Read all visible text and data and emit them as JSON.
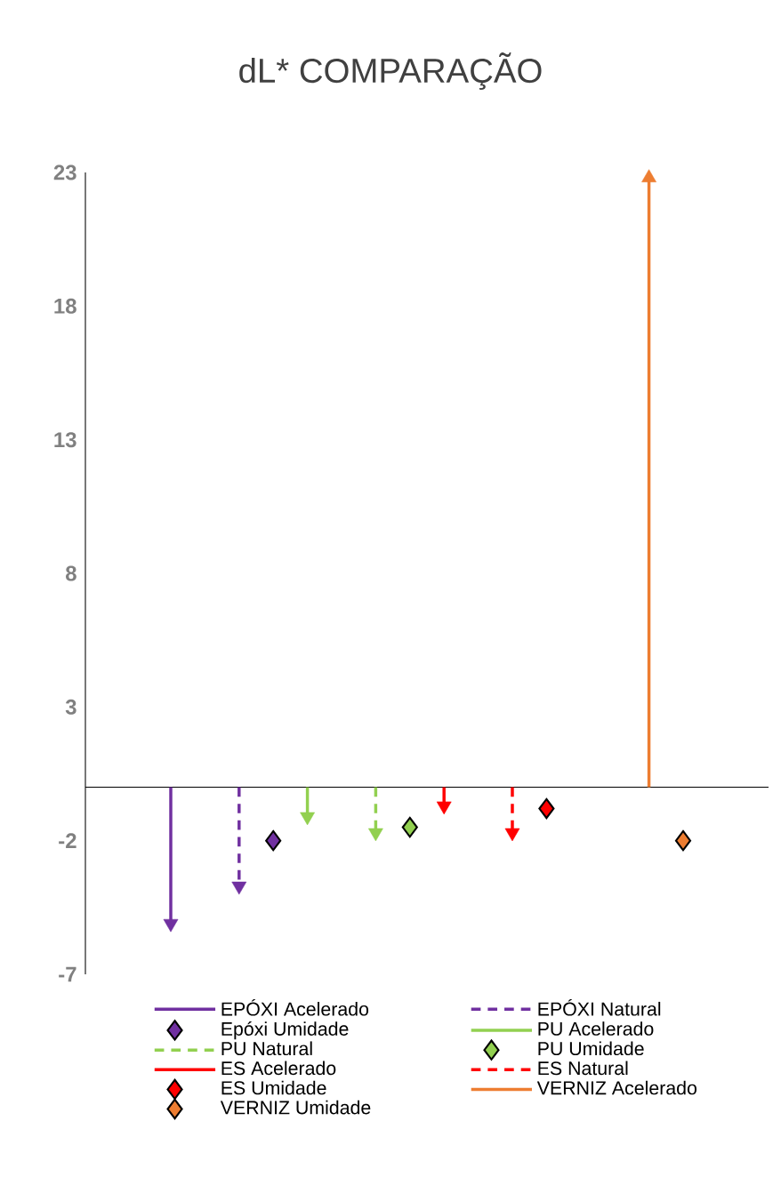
{
  "chart_data": {
    "type": "lollipop",
    "title": "dL* COMPARAÇÃO",
    "categories": [
      null,
      null,
      null,
      null,
      null,
      null,
      null,
      null,
      null,
      null,
      null,
      null,
      null,
      null,
      null,
      null,
      null,
      null,
      null,
      null
    ],
    "ylim": [
      -7,
      23
    ],
    "yticks": [
      -7,
      -2,
      3,
      8,
      13,
      18,
      23
    ],
    "tick_labels": "y",
    "legend": "bottom",
    "series": [
      {
        "name": "EPÓXI Acelerado",
        "marker": "triangle",
        "line_style": "solid",
        "color": "#7030a0",
        "values": [
          null,
          null,
          -5.1,
          null,
          null,
          null,
          null,
          null,
          null,
          null,
          null,
          null,
          null,
          null,
          null,
          null,
          null,
          null,
          null,
          null
        ]
      },
      {
        "name": "EPÓXI Natural",
        "marker": "triangle",
        "line_style": "dashed",
        "color": "#7030a0",
        "values": [
          null,
          null,
          null,
          null,
          -3.7,
          null,
          null,
          null,
          null,
          null,
          null,
          null,
          null,
          null,
          null,
          null,
          null,
          null,
          null,
          null
        ]
      },
      {
        "name": "Epóxi Umidade",
        "type": "scatter",
        "marker": "diamond",
        "color": "#7030a0",
        "values": [
          null,
          null,
          null,
          null,
          null,
          -2.0,
          null,
          null,
          null,
          null,
          null,
          null,
          null,
          null,
          null,
          null,
          null,
          null,
          null,
          null
        ]
      },
      {
        "name": "PU Acelerado",
        "marker": "triangle",
        "line_style": "solid",
        "color": "#92d050",
        "values": [
          null,
          null,
          null,
          null,
          null,
          null,
          -1.1,
          null,
          null,
          null,
          null,
          null,
          null,
          null,
          null,
          null,
          null,
          null,
          null,
          null
        ]
      },
      {
        "name": "PU Natural",
        "marker": "triangle",
        "line_style": "dashed",
        "color": "#92d050",
        "values": [
          null,
          null,
          null,
          null,
          null,
          null,
          null,
          null,
          -1.7,
          null,
          null,
          null,
          null,
          null,
          null,
          null,
          null,
          null,
          null,
          null
        ]
      },
      {
        "name": "PU Umidade",
        "type": "scatter",
        "marker": "diamond",
        "color": "#92d050",
        "values": [
          null,
          null,
          null,
          null,
          null,
          null,
          null,
          null,
          null,
          -1.5,
          null,
          null,
          null,
          null,
          null,
          null,
          null,
          null,
          null,
          null
        ]
      },
      {
        "name": "ES Acelerado",
        "marker": "triangle",
        "line_style": "solid",
        "color": "#ff0000",
        "values": [
          null,
          null,
          null,
          null,
          null,
          null,
          null,
          null,
          null,
          null,
          -0.7,
          null,
          null,
          null,
          null,
          null,
          null,
          null,
          null,
          null
        ]
      },
      {
        "name": "ES Natural",
        "marker": "triangle",
        "line_style": "dashed",
        "color": "#ff0000",
        "values": [
          null,
          null,
          null,
          null,
          null,
          null,
          null,
          null,
          null,
          null,
          null,
          null,
          -1.7,
          null,
          null,
          null,
          null,
          null,
          null,
          null
        ]
      },
      {
        "name": "ES Umidade",
        "type": "scatter",
        "marker": "diamond",
        "color": "#ff0000",
        "values": [
          null,
          null,
          null,
          null,
          null,
          null,
          null,
          null,
          null,
          null,
          null,
          null,
          null,
          -0.8,
          null,
          null,
          null,
          null,
          null,
          null
        ]
      },
      {
        "name": "VERNIZ Acelerado",
        "marker": "triangle",
        "line_style": "solid",
        "color": "#ed7d31",
        "values": [
          null,
          null,
          null,
          null,
          null,
          null,
          null,
          null,
          null,
          null,
          null,
          null,
          null,
          null,
          null,
          null,
          22.8,
          null,
          null,
          null
        ]
      },
      {
        "name": "VERNIZ Umidade",
        "type": "scatter",
        "marker": "diamond",
        "color": "#ed7d31",
        "values": [
          null,
          null,
          null,
          null,
          null,
          null,
          null,
          null,
          null,
          null,
          null,
          null,
          null,
          null,
          null,
          null,
          null,
          -2.0,
          null,
          null
        ]
      }
    ]
  }
}
